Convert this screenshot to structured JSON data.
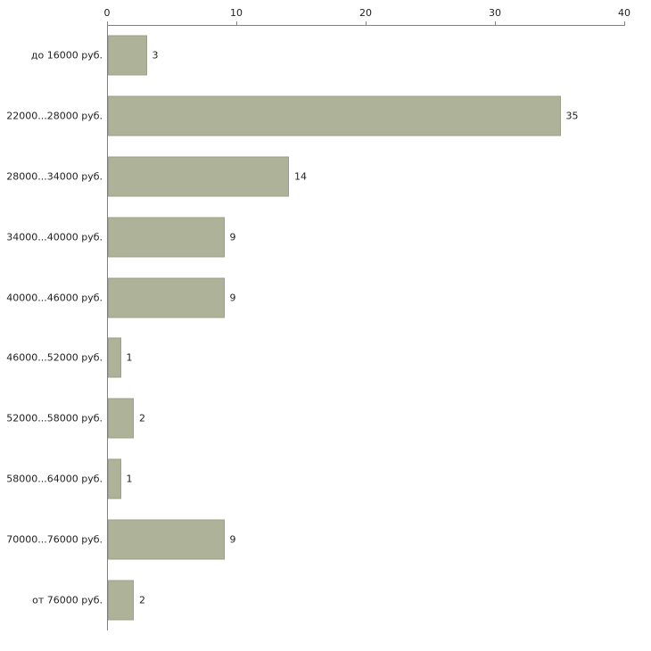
{
  "chart_data": {
    "type": "bar",
    "orientation": "horizontal",
    "title": "",
    "xlabel": "",
    "ylabel": "",
    "categories": [
      "до 16000 руб.",
      "22000...28000 руб.",
      "28000...34000 руб.",
      "34000...40000 руб.",
      "40000...46000 руб.",
      "46000...52000 руб.",
      "52000...58000 руб.",
      "58000...64000 руб.",
      "70000...76000 руб.",
      "от 76000 руб."
    ],
    "values": [
      3,
      35,
      14,
      9,
      9,
      1,
      2,
      1,
      9,
      2
    ],
    "xlim": [
      0,
      40
    ],
    "x_ticks": [
      0,
      10,
      20,
      30,
      40
    ],
    "grid": false,
    "legend": false,
    "value_labels_shown": true,
    "bar_color": "#adb299",
    "bar_border_color": "#9aa183",
    "axis_color": "#808080",
    "text_color": "#1f1f1f",
    "background_color": "#ffffff"
  }
}
